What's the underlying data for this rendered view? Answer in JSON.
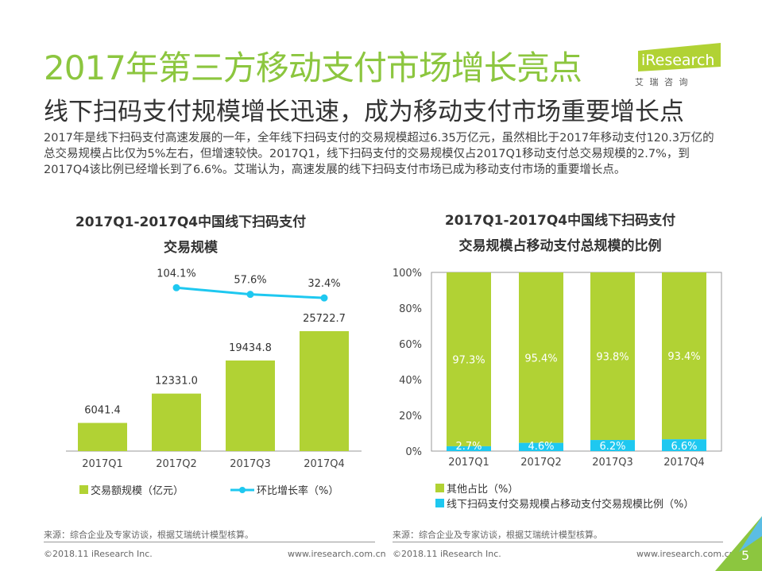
{
  "header": {
    "title": "2017年第三方移动支付市场增长亮点",
    "subtitle": "线下扫码支付规模增长迅速，成为移动支付市场重要增长点",
    "body": "2017年是线下扫码支付高速发展的一年，全年线下扫码支付的交易规模超过6.35万亿元，虽然相比于2017年移动支付120.3万亿的总交易规模占比仅为5%左右，但增速较快。2017Q1，线下扫码支付的交易规模仅占2017Q1移动支付总交易规模的2.7%，到2017Q4该比例已经增长到了6.6%。艾瑞认为，高速发展的线下扫码支付市场已成为移动支付市场的重要增长点。"
  },
  "logo": {
    "text": "iResearch",
    "sub": "艾 瑞 咨 询"
  },
  "colors": {
    "green": "#b1d234",
    "cyan": "#1ec8f0",
    "title_green": "#8cc63f"
  },
  "chart_data": [
    {
      "type": "bar+line",
      "title_line1": "2017Q1-2017Q4中国线下扫码支付",
      "title_line2": "交易规模",
      "categories": [
        "2017Q1",
        "2017Q2",
        "2017Q3",
        "2017Q4"
      ],
      "series": [
        {
          "name": "交易额规模（亿元）",
          "type": "bar",
          "values": [
            6041.4,
            12331.0,
            19434.8,
            25722.7
          ],
          "labels": [
            "6041.4",
            "12331.0",
            "19434.8",
            "25722.7"
          ]
        },
        {
          "name": "环比增长率（%）",
          "type": "line",
          "x": [
            "2017Q2",
            "2017Q3",
            "2017Q4"
          ],
          "values": [
            104.1,
            57.6,
            32.4
          ],
          "labels": [
            "104.1%",
            "57.6%",
            "32.4%"
          ]
        }
      ]
    },
    {
      "type": "stacked-bar",
      "title_line1": "2017Q1-2017Q4中国线下扫码支付",
      "title_line2": "交易规模占移动支付总规模的比例",
      "categories": [
        "2017Q1",
        "2017Q2",
        "2017Q3",
        "2017Q4"
      ],
      "ylim": [
        0,
        100
      ],
      "yticks": [
        "0%",
        "20%",
        "40%",
        "60%",
        "80%",
        "100%"
      ],
      "series": [
        {
          "name": "线下扫码支付交易规模占移动支付交易规模比例（%）",
          "values": [
            2.7,
            4.6,
            6.2,
            6.6
          ],
          "labels": [
            "2.7%",
            "4.6%",
            "6.2%",
            "6.6%"
          ]
        },
        {
          "name": "其他占比（%）",
          "values": [
            97.3,
            95.4,
            93.8,
            93.4
          ],
          "labels": [
            "97.3%",
            "95.4%",
            "93.8%",
            "93.4%"
          ]
        }
      ],
      "legend": "bottom"
    }
  ],
  "footer": {
    "source": "来源：综合企业及专家访谈，根据艾瑞统计模型核算。",
    "copyright": "©2018.11 iResearch Inc.",
    "url": "www.iresearch.com.cn",
    "page": "5"
  }
}
